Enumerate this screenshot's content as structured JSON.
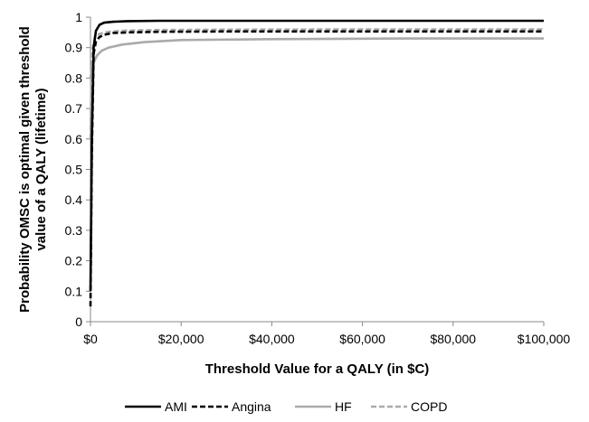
{
  "chart_data": {
    "type": "line",
    "title": "",
    "xlabel": "Threshold Value for a QALY (in $C)",
    "ylabel": "Probability OMSC is optimal given threshold value of a QALY (lifetime)",
    "ylabel_lines": [
      "Probability OMSC is optimal given threshold",
      "value of a QALY (lifetime)"
    ],
    "xlim": [
      0,
      100000
    ],
    "ylim": [
      0,
      1
    ],
    "x_ticks": [
      0,
      20000,
      40000,
      60000,
      80000,
      100000
    ],
    "x_tick_labels": [
      "$0",
      "$20,000",
      "$40,000",
      "$60,000",
      "$80,000",
      "$100,000"
    ],
    "y_ticks": [
      0,
      0.1,
      0.2,
      0.3,
      0.4,
      0.5,
      0.6,
      0.7,
      0.8,
      0.9,
      1
    ],
    "y_tick_labels": [
      "0",
      "0.1",
      "0.2",
      "0.3",
      "0.4",
      "0.5",
      "0.6",
      "0.7",
      "0.8",
      "0.9",
      "1"
    ],
    "grid": false,
    "legend_position": "bottom",
    "series": [
      {
        "name": "AMI",
        "color": "#000000",
        "style": "solid",
        "x": [
          0,
          300,
          700,
          1200,
          2000,
          3000,
          5000,
          8000,
          15000,
          30000,
          60000,
          100000
        ],
        "y": [
          0.1,
          0.6,
          0.9,
          0.955,
          0.975,
          0.982,
          0.985,
          0.987,
          0.988,
          0.988,
          0.988,
          0.988
        ]
      },
      {
        "name": "Angina",
        "color": "#000000",
        "style": "dashed",
        "x": [
          0,
          300,
          700,
          1200,
          2000,
          3000,
          5000,
          8000,
          15000,
          30000,
          60000,
          100000
        ],
        "y": [
          0.05,
          0.55,
          0.88,
          0.92,
          0.935,
          0.942,
          0.948,
          0.95,
          0.952,
          0.953,
          0.953,
          0.953
        ]
      },
      {
        "name": "HF",
        "color": "#aaaaaa",
        "style": "solid",
        "x": [
          0,
          300,
          800,
          1500,
          2500,
          4000,
          7000,
          12000,
          20000,
          40000,
          70000,
          100000
        ],
        "y": [
          0.8,
          0.83,
          0.855,
          0.875,
          0.89,
          0.9,
          0.91,
          0.918,
          0.925,
          0.928,
          0.93,
          0.93
        ]
      },
      {
        "name": "COPD",
        "color": "#aaaaaa",
        "style": "dashed",
        "x": [
          0,
          200,
          500,
          1000,
          2000,
          4000,
          8000,
          15000,
          30000,
          60000,
          100000
        ],
        "y": [
          0.6,
          0.8,
          0.9,
          0.935,
          0.945,
          0.952,
          0.956,
          0.958,
          0.959,
          0.96,
          0.96
        ]
      }
    ]
  }
}
